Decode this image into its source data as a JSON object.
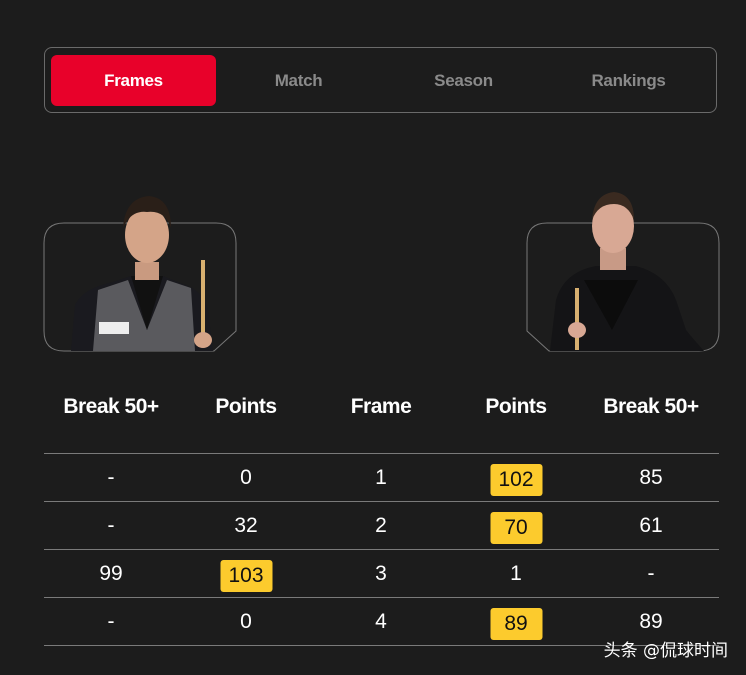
{
  "tabs": [
    {
      "label": "Frames",
      "active": true
    },
    {
      "label": "Match",
      "active": false
    },
    {
      "label": "Season",
      "active": false
    },
    {
      "label": "Rankings",
      "active": false
    }
  ],
  "colors": {
    "accent": "#e8012a",
    "highlight": "#fccb2d",
    "background": "#1c1c1c"
  },
  "players": [
    {
      "side": "left",
      "image": "player-photo"
    },
    {
      "side": "right",
      "image": "player-photo"
    }
  ],
  "table": {
    "headers": [
      "Break 50+",
      "Points",
      "Frame",
      "Points",
      "Break 50+"
    ],
    "rows": [
      {
        "cells": [
          "-",
          "0",
          "1",
          "102",
          "85"
        ],
        "winner": "right"
      },
      {
        "cells": [
          "-",
          "32",
          "2",
          "70",
          "61"
        ],
        "winner": "right"
      },
      {
        "cells": [
          "99",
          "103",
          "3",
          "1",
          "-"
        ],
        "winner": "left"
      },
      {
        "cells": [
          "-",
          "0",
          "4",
          "89",
          "89"
        ],
        "winner": "right"
      }
    ]
  },
  "watermark": "头条 @侃球时间"
}
